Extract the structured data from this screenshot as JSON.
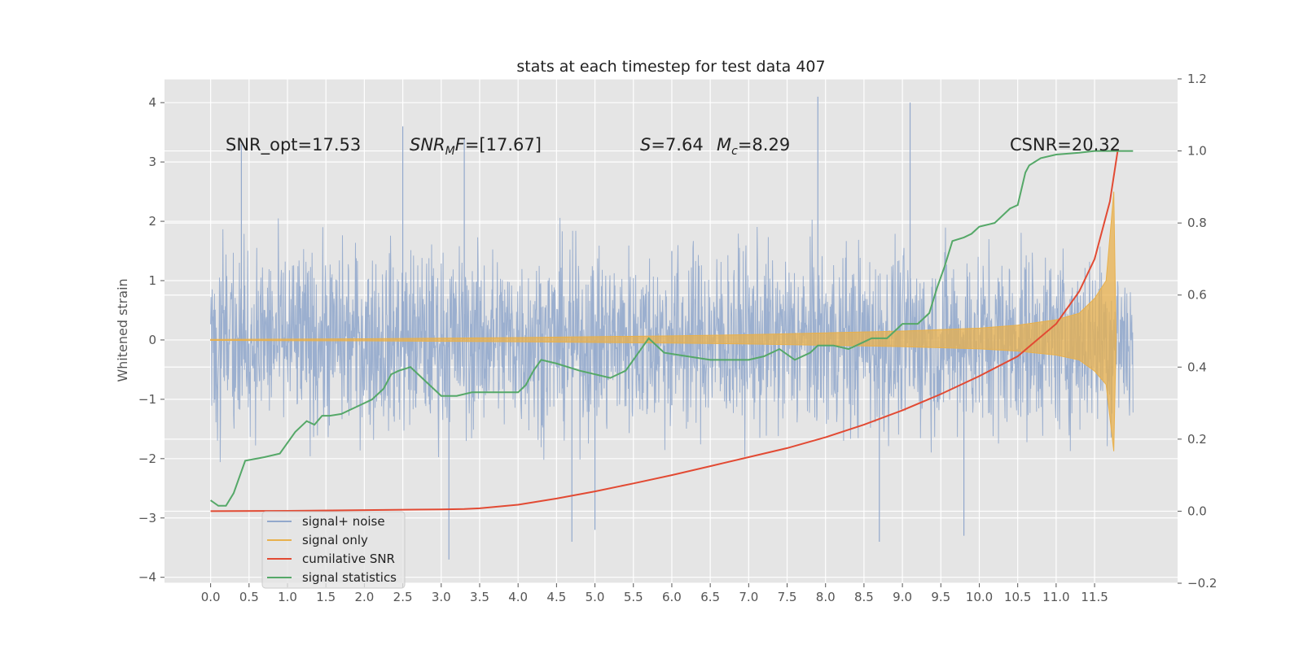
{
  "chart_data": {
    "type": "line",
    "title": "stats at each timestep for test data 407",
    "ylabel": "Whitened strain",
    "xlabel": "",
    "xlim": [
      -0.6,
      12.58
    ],
    "ylim": [
      -4.1,
      4.4
    ],
    "y2lim": [
      -0.2,
      1.2
    ],
    "grid": true,
    "legend_position": "lower-left",
    "xticks": [
      "0.0",
      "0.5",
      "1.0",
      "1.5",
      "2.0",
      "2.5",
      "3.0",
      "3.5",
      "4.0",
      "4.5",
      "5.0",
      "5.5",
      "6.0",
      "6.5",
      "7.0",
      "7.5",
      "8.0",
      "8.5",
      "9.0",
      "9.5",
      "10.0",
      "10.5",
      "11.0",
      "11.5"
    ],
    "yticks": [
      "4",
      "3",
      "2",
      "1",
      "0",
      "−1",
      "−2",
      "−3",
      "−4"
    ],
    "y2ticks": [
      "1.2",
      "1.0",
      "0.8",
      "0.6",
      "0.4",
      "0.2",
      "0.0",
      "−0.2"
    ],
    "annotations": {
      "snr_opt": "SNR_opt=17.53",
      "snr_mf_sym": "SNR",
      "snr_mf_sub": "M",
      "snr_mf_f": "F",
      "snr_mf_val": "=[17.67]",
      "s_sym": "S",
      "s_val": "=7.64",
      "mc_sym": "M",
      "mc_sub": "c",
      "mc_val": "=8.29",
      "csnr": "CSNR=20.32"
    },
    "series": [
      {
        "name": "signal+ noise",
        "color": "#92a8cc",
        "axis": "left",
        "x_range": [
          0.0,
          12.0
        ],
        "mean": 0.0,
        "std": 0.75,
        "peaks": [
          [
            0.4,
            3.3
          ],
          [
            2.5,
            3.6
          ],
          [
            3.3,
            3.4
          ],
          [
            6.0,
            1.5
          ],
          [
            6.0,
            -1.1
          ],
          [
            7.9,
            4.1
          ],
          [
            9.1,
            4.0
          ],
          [
            3.1,
            -3.7
          ],
          [
            4.7,
            -3.4
          ],
          [
            5.0,
            -3.2
          ],
          [
            8.7,
            -3.4
          ],
          [
            9.8,
            -3.3
          ]
        ]
      },
      {
        "name": "signal only",
        "color": "#e8b04c",
        "axis": "left",
        "envelope": {
          "x": [
            0.0,
            2.0,
            4.0,
            6.0,
            7.0,
            8.0,
            9.0,
            10.0,
            10.5,
            11.0,
            11.3,
            11.5,
            11.65,
            11.75,
            11.78
          ],
          "amp": [
            0.01,
            0.02,
            0.04,
            0.07,
            0.09,
            0.12,
            0.15,
            0.2,
            0.25,
            0.34,
            0.45,
            0.7,
            1.0,
            2.5,
            0.0
          ]
        }
      },
      {
        "name": "cumilative SNR",
        "color": "#e24a33",
        "axis": "right",
        "x": [
          0.0,
          1.0,
          2.0,
          3.0,
          3.3,
          3.5,
          4.0,
          4.5,
          5.0,
          5.5,
          6.0,
          6.5,
          7.0,
          7.5,
          8.0,
          8.5,
          9.0,
          9.5,
          10.0,
          10.5,
          11.0,
          11.3,
          11.5,
          11.7,
          11.8
        ],
        "values": [
          0.0,
          0.001,
          0.003,
          0.005,
          0.006,
          0.008,
          0.018,
          0.035,
          0.055,
          0.077,
          0.1,
          0.125,
          0.15,
          0.175,
          0.205,
          0.24,
          0.28,
          0.325,
          0.375,
          0.43,
          0.52,
          0.61,
          0.7,
          0.86,
          1.0
        ]
      },
      {
        "name": "signal statistics",
        "color": "#55a868",
        "axis": "right",
        "x": [
          0.0,
          0.1,
          0.2,
          0.3,
          0.45,
          0.7,
          0.9,
          1.1,
          1.25,
          1.35,
          1.45,
          1.55,
          1.7,
          1.9,
          2.1,
          2.25,
          2.35,
          2.45,
          2.6,
          2.8,
          3.0,
          3.2,
          3.4,
          3.6,
          3.8,
          4.0,
          4.1,
          4.2,
          4.3,
          4.5,
          4.8,
          5.0,
          5.2,
          5.4,
          5.6,
          5.7,
          5.9,
          6.2,
          6.5,
          6.8,
          7.0,
          7.2,
          7.4,
          7.6,
          7.8,
          7.9,
          8.1,
          8.3,
          8.5,
          8.6,
          8.8,
          8.9,
          9.0,
          9.2,
          9.35,
          9.45,
          9.55,
          9.65,
          9.8,
          9.9,
          10.0,
          10.2,
          10.4,
          10.5,
          10.6,
          10.65,
          10.8,
          11.0,
          11.3,
          11.5,
          11.8,
          12.0
        ],
        "values": [
          0.03,
          0.015,
          0.015,
          0.05,
          0.14,
          0.15,
          0.16,
          0.22,
          0.25,
          0.24,
          0.265,
          0.265,
          0.27,
          0.29,
          0.31,
          0.34,
          0.38,
          0.39,
          0.4,
          0.36,
          0.32,
          0.32,
          0.33,
          0.33,
          0.33,
          0.33,
          0.35,
          0.39,
          0.42,
          0.41,
          0.39,
          0.38,
          0.37,
          0.39,
          0.45,
          0.48,
          0.44,
          0.43,
          0.42,
          0.42,
          0.42,
          0.43,
          0.45,
          0.42,
          0.44,
          0.46,
          0.46,
          0.45,
          0.47,
          0.48,
          0.48,
          0.5,
          0.52,
          0.52,
          0.55,
          0.62,
          0.68,
          0.75,
          0.76,
          0.77,
          0.79,
          0.8,
          0.84,
          0.85,
          0.94,
          0.96,
          0.98,
          0.99,
          0.995,
          1.0,
          1.0,
          1.0
        ]
      }
    ]
  }
}
